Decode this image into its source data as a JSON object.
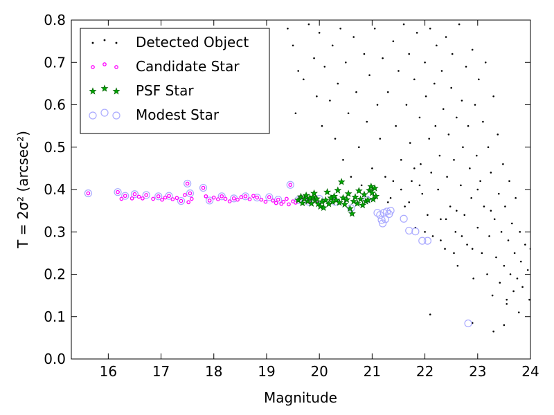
{
  "chart_data": {
    "type": "scatter",
    "xlabel": "Magnitude",
    "ylabel": "T = 2σ² (arcsec²)",
    "xlim": [
      15.3,
      24
    ],
    "ylim": [
      0,
      0.8
    ],
    "xticks": [
      "16",
      "17",
      "18",
      "19",
      "20",
      "21",
      "22",
      "23",
      "24"
    ],
    "yticks": [
      "0.0",
      "0.1",
      "0.2",
      "0.3",
      "0.4",
      "0.5",
      "0.6",
      "0.7",
      "0.8"
    ],
    "grid": false,
    "legend_position": "top-left",
    "legend": [
      "Detected Object",
      "Candidate Star",
      "PSF Star",
      "Modest Star"
    ],
    "colors": {
      "detected": "#000000",
      "candidate": "#ff00ff",
      "psf_fill": "#00aa00",
      "psf_edge": "#006600",
      "modest": "#aaaaff"
    },
    "series": [
      {
        "name": "Detected Object",
        "marker": "dot",
        "points": [
          [
            19.4,
            0.78
          ],
          [
            19.5,
            0.74
          ],
          [
            19.6,
            0.68
          ],
          [
            19.55,
            0.58
          ],
          [
            19.7,
            0.66
          ],
          [
            19.8,
            0.79
          ],
          [
            19.9,
            0.71
          ],
          [
            19.95,
            0.62
          ],
          [
            20.0,
            0.77
          ],
          [
            20.05,
            0.55
          ],
          [
            20.1,
            0.69
          ],
          [
            20.2,
            0.61
          ],
          [
            20.25,
            0.74
          ],
          [
            20.3,
            0.52
          ],
          [
            20.35,
            0.65
          ],
          [
            20.4,
            0.78
          ],
          [
            20.45,
            0.47
          ],
          [
            20.5,
            0.7
          ],
          [
            20.55,
            0.58
          ],
          [
            20.6,
            0.43
          ],
          [
            20.65,
            0.76
          ],
          [
            20.7,
            0.63
          ],
          [
            20.75,
            0.5
          ],
          [
            20.8,
            0.41
          ],
          [
            20.85,
            0.72
          ],
          [
            20.9,
            0.56
          ],
          [
            20.95,
            0.67
          ],
          [
            21.0,
            0.45
          ],
          [
            21.05,
            0.78
          ],
          [
            21.1,
            0.6
          ],
          [
            21.15,
            0.52
          ],
          [
            21.2,
            0.71
          ],
          [
            21.25,
            0.43
          ],
          [
            21.3,
            0.63
          ],
          [
            21.35,
            0.38
          ],
          [
            21.4,
            0.75
          ],
          [
            21.45,
            0.55
          ],
          [
            21.5,
            0.68
          ],
          [
            21.55,
            0.47
          ],
          [
            21.6,
            0.79
          ],
          [
            21.62,
            0.36
          ],
          [
            21.65,
            0.6
          ],
          [
            21.7,
            0.72
          ],
          [
            21.72,
            0.51
          ],
          [
            21.75,
            0.42
          ],
          [
            21.8,
            0.66
          ],
          [
            21.82,
            0.31
          ],
          [
            21.85,
            0.77
          ],
          [
            21.9,
            0.57
          ],
          [
            21.92,
            0.46
          ],
          [
            21.95,
            0.39
          ],
          [
            22.0,
            0.7
          ],
          [
            22.02,
            0.62
          ],
          [
            22.05,
            0.34
          ],
          [
            22.08,
            0.52
          ],
          [
            22.1,
            0.78
          ],
          [
            22.12,
            0.44
          ],
          [
            22.15,
            0.29
          ],
          [
            22.18,
            0.65
          ],
          [
            22.2,
            0.55
          ],
          [
            22.22,
            0.74
          ],
          [
            22.25,
            0.4
          ],
          [
            22.28,
            0.48
          ],
          [
            22.3,
            0.33
          ],
          [
            22.32,
            0.68
          ],
          [
            22.35,
            0.59
          ],
          [
            22.38,
            0.26
          ],
          [
            22.4,
            0.76
          ],
          [
            22.42,
            0.43
          ],
          [
            22.45,
            0.53
          ],
          [
            22.48,
            0.36
          ],
          [
            22.5,
            0.64
          ],
          [
            22.52,
            0.72
          ],
          [
            22.55,
            0.47
          ],
          [
            22.58,
            0.3
          ],
          [
            22.6,
            0.57
          ],
          [
            22.62,
            0.22
          ],
          [
            22.65,
            0.79
          ],
          [
            22.68,
            0.41
          ],
          [
            22.7,
            0.61
          ],
          [
            22.72,
            0.5
          ],
          [
            22.75,
            0.34
          ],
          [
            22.78,
            0.69
          ],
          [
            22.8,
            0.27
          ],
          [
            22.82,
            0.55
          ],
          [
            22.85,
            0.45
          ],
          [
            22.88,
            0.38
          ],
          [
            22.9,
            0.73
          ],
          [
            22.92,
            0.19
          ],
          [
            22.95,
            0.6
          ],
          [
            22.98,
            0.48
          ],
          [
            23.0,
            0.31
          ],
          [
            23.02,
            0.66
          ],
          [
            23.05,
            0.42
          ],
          [
            23.08,
            0.25
          ],
          [
            23.1,
            0.56
          ],
          [
            23.12,
            0.36
          ],
          [
            23.15,
            0.7
          ],
          [
            23.18,
            0.2
          ],
          [
            23.2,
            0.5
          ],
          [
            23.22,
            0.29
          ],
          [
            23.25,
            0.44
          ],
          [
            23.28,
            0.15
          ],
          [
            23.3,
            0.62
          ],
          [
            23.32,
            0.33
          ],
          [
            23.35,
            0.24
          ],
          [
            23.38,
            0.53
          ],
          [
            23.4,
            0.39
          ],
          [
            23.42,
            0.18
          ],
          [
            23.45,
            0.3
          ],
          [
            23.48,
            0.46
          ],
          [
            23.5,
            0.22
          ],
          [
            23.52,
            0.36
          ],
          [
            23.55,
            0.14
          ],
          [
            23.58,
            0.28
          ],
          [
            23.6,
            0.42
          ],
          [
            23.62,
            0.2
          ],
          [
            23.65,
            0.32
          ],
          [
            23.68,
            0.16
          ],
          [
            23.7,
            0.25
          ],
          [
            23.72,
            0.38
          ],
          [
            23.75,
            0.19
          ],
          [
            23.78,
            0.11
          ],
          [
            23.8,
            0.3
          ],
          [
            23.82,
            0.23
          ],
          [
            23.85,
            0.17
          ],
          [
            23.9,
            0.27
          ],
          [
            23.95,
            0.21
          ],
          [
            23.98,
            0.14
          ],
          [
            24.0,
            0.26
          ],
          [
            22.1,
            0.105
          ],
          [
            22.9,
            0.085
          ],
          [
            23.3,
            0.065
          ],
          [
            23.5,
            0.08
          ],
          [
            23.55,
            0.13
          ],
          [
            22.3,
            0.28
          ],
          [
            22.6,
            0.35
          ],
          [
            21.9,
            0.41
          ],
          [
            21.7,
            0.37
          ],
          [
            22.0,
            0.3
          ],
          [
            21.55,
            0.4
          ],
          [
            21.4,
            0.42
          ],
          [
            21.3,
            0.37
          ],
          [
            21.8,
            0.45
          ],
          [
            22.4,
            0.33
          ],
          [
            22.7,
            0.29
          ],
          [
            23.0,
            0.4
          ],
          [
            23.25,
            0.35
          ],
          [
            22.9,
            0.26
          ],
          [
            22.55,
            0.25
          ]
        ]
      },
      {
        "name": "Candidate Star",
        "marker": "circle",
        "points": [
          [
            15.62,
            0.391
          ],
          [
            16.18,
            0.394
          ],
          [
            16.25,
            0.378
          ],
          [
            16.32,
            0.385
          ],
          [
            16.45,
            0.379
          ],
          [
            16.5,
            0.389
          ],
          [
            16.58,
            0.383
          ],
          [
            16.65,
            0.379
          ],
          [
            16.72,
            0.387
          ],
          [
            16.85,
            0.378
          ],
          [
            16.95,
            0.384
          ],
          [
            17.02,
            0.376
          ],
          [
            17.08,
            0.381
          ],
          [
            17.15,
            0.385
          ],
          [
            17.22,
            0.377
          ],
          [
            17.3,
            0.38
          ],
          [
            17.38,
            0.373
          ],
          [
            17.45,
            0.387
          ],
          [
            17.5,
            0.414
          ],
          [
            17.52,
            0.37
          ],
          [
            17.55,
            0.391
          ],
          [
            17.58,
            0.378
          ],
          [
            17.8,
            0.404
          ],
          [
            17.85,
            0.384
          ],
          [
            17.92,
            0.374
          ],
          [
            18.0,
            0.381
          ],
          [
            18.08,
            0.377
          ],
          [
            18.15,
            0.384
          ],
          [
            18.22,
            0.378
          ],
          [
            18.3,
            0.372
          ],
          [
            18.38,
            0.379
          ],
          [
            18.45,
            0.376
          ],
          [
            18.52,
            0.382
          ],
          [
            18.6,
            0.384
          ],
          [
            18.68,
            0.377
          ],
          [
            18.75,
            0.385
          ],
          [
            18.82,
            0.381
          ],
          [
            18.9,
            0.376
          ],
          [
            18.98,
            0.371
          ],
          [
            19.05,
            0.382
          ],
          [
            19.12,
            0.374
          ],
          [
            19.18,
            0.368
          ],
          [
            19.22,
            0.376
          ],
          [
            19.28,
            0.366
          ],
          [
            19.32,
            0.371
          ],
          [
            19.38,
            0.378
          ],
          [
            19.42,
            0.365
          ],
          [
            19.45,
            0.411
          ],
          [
            19.5,
            0.372
          ],
          [
            19.55,
            0.369
          ],
          [
            19.6,
            0.375
          ],
          [
            19.65,
            0.383
          ],
          [
            19.72,
            0.378
          ],
          [
            19.8,
            0.371
          ],
          [
            19.88,
            0.382
          ],
          [
            19.95,
            0.374
          ]
        ]
      },
      {
        "name": "PSF Star",
        "marker": "star",
        "points": [
          [
            19.6,
            0.375
          ],
          [
            19.65,
            0.383
          ],
          [
            19.68,
            0.368
          ],
          [
            19.72,
            0.378
          ],
          [
            19.75,
            0.386
          ],
          [
            19.78,
            0.372
          ],
          [
            19.82,
            0.38
          ],
          [
            19.85,
            0.367
          ],
          [
            19.88,
            0.382
          ],
          [
            19.9,
            0.391
          ],
          [
            19.92,
            0.374
          ],
          [
            19.95,
            0.378
          ],
          [
            19.98,
            0.366
          ],
          [
            20.02,
            0.36
          ],
          [
            20.05,
            0.371
          ],
          [
            20.08,
            0.357
          ],
          [
            20.12,
            0.375
          ],
          [
            20.15,
            0.394
          ],
          [
            20.18,
            0.366
          ],
          [
            20.22,
            0.38
          ],
          [
            20.25,
            0.371
          ],
          [
            20.28,
            0.384
          ],
          [
            20.32,
            0.375
          ],
          [
            20.35,
            0.398
          ],
          [
            20.38,
            0.369
          ],
          [
            20.42,
            0.418
          ],
          [
            20.45,
            0.38
          ],
          [
            20.48,
            0.365
          ],
          [
            20.52,
            0.376
          ],
          [
            20.55,
            0.39
          ],
          [
            20.58,
            0.355
          ],
          [
            20.62,
            0.343
          ],
          [
            20.65,
            0.372
          ],
          [
            20.68,
            0.382
          ],
          [
            20.72,
            0.367
          ],
          [
            20.75,
            0.397
          ],
          [
            20.78,
            0.377
          ],
          [
            20.82,
            0.363
          ],
          [
            20.85,
            0.388
          ],
          [
            20.88,
            0.372
          ],
          [
            20.92,
            0.375
          ],
          [
            20.95,
            0.398
          ],
          [
            20.98,
            0.407
          ],
          [
            21.0,
            0.392
          ],
          [
            21.02,
            0.377
          ],
          [
            21.05,
            0.403
          ],
          [
            21.07,
            0.384
          ]
        ]
      },
      {
        "name": "Modest Star",
        "marker": "open-circle",
        "points": [
          [
            15.62,
            0.391
          ],
          [
            16.18,
            0.394
          ],
          [
            16.32,
            0.385
          ],
          [
            16.5,
            0.389
          ],
          [
            16.72,
            0.387
          ],
          [
            16.95,
            0.384
          ],
          [
            17.15,
            0.385
          ],
          [
            17.38,
            0.373
          ],
          [
            17.5,
            0.414
          ],
          [
            17.55,
            0.391
          ],
          [
            17.8,
            0.404
          ],
          [
            17.92,
            0.374
          ],
          [
            18.15,
            0.384
          ],
          [
            18.38,
            0.379
          ],
          [
            18.6,
            0.384
          ],
          [
            18.82,
            0.381
          ],
          [
            19.05,
            0.382
          ],
          [
            19.22,
            0.376
          ],
          [
            19.45,
            0.411
          ],
          [
            19.6,
            0.375
          ],
          [
            19.8,
            0.371
          ],
          [
            20.0,
            0.378
          ],
          [
            20.3,
            0.371
          ],
          [
            20.6,
            0.356
          ],
          [
            20.9,
            0.376
          ],
          [
            21.1,
            0.345
          ],
          [
            21.15,
            0.34
          ],
          [
            21.18,
            0.328
          ],
          [
            21.2,
            0.32
          ],
          [
            21.22,
            0.345
          ],
          [
            21.25,
            0.33
          ],
          [
            21.28,
            0.348
          ],
          [
            21.32,
            0.342
          ],
          [
            21.35,
            0.35
          ],
          [
            21.6,
            0.331
          ],
          [
            21.7,
            0.303
          ],
          [
            21.82,
            0.301
          ],
          [
            21.95,
            0.279
          ],
          [
            22.05,
            0.279
          ],
          [
            22.82,
            0.084
          ]
        ]
      }
    ]
  }
}
